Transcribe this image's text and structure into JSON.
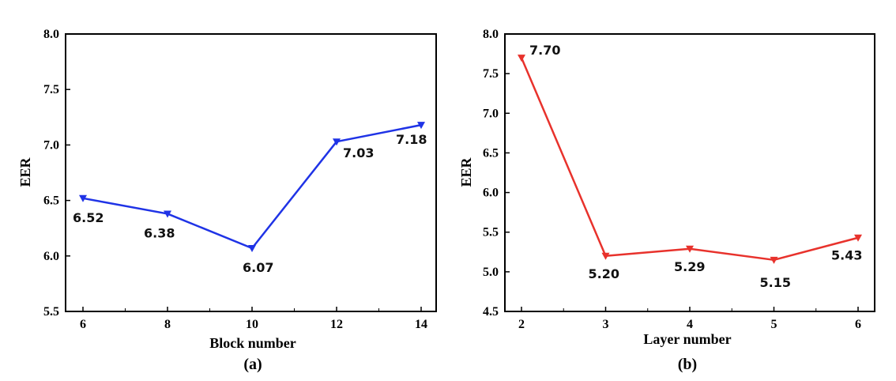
{
  "chart_data": [
    {
      "type": "line",
      "caption": "(a)",
      "xlabel": "Block number",
      "ylabel": "EER",
      "x": [
        6,
        8,
        10,
        12,
        14
      ],
      "xticks": [
        "6",
        "8",
        "10",
        "12",
        "14"
      ],
      "ylim": [
        5.5,
        8.0
      ],
      "yticks": [
        "5.5",
        "6.0",
        "6.5",
        "7.0",
        "7.5",
        "8.0"
      ],
      "series": [
        {
          "color": "#1f33e6",
          "marker": "triangle-down",
          "values": [
            6.52,
            6.38,
            6.07,
            7.03,
            7.18
          ],
          "labels": [
            "6.52",
            "6.38",
            "6.07",
            "7.03",
            "7.18"
          ]
        }
      ],
      "grid": false
    },
    {
      "type": "line",
      "caption": "(b)",
      "xlabel": "Layer number",
      "ylabel": "EER",
      "x": [
        2,
        3,
        4,
        5,
        6
      ],
      "xticks": [
        "2",
        "3",
        "4",
        "5",
        "6"
      ],
      "ylim": [
        4.5,
        8.0
      ],
      "yticks": [
        "4.5",
        "5.0",
        "5.5",
        "6.0",
        "6.5",
        "7.0",
        "7.5",
        "8.0"
      ],
      "series": [
        {
          "color": "#e8322c",
          "marker": "triangle-down",
          "values": [
            7.7,
            5.2,
            5.29,
            5.15,
            5.43
          ],
          "labels": [
            "7.70",
            "5.20",
            "5.29",
            "5.15",
            "5.43"
          ]
        }
      ],
      "grid": false
    }
  ]
}
